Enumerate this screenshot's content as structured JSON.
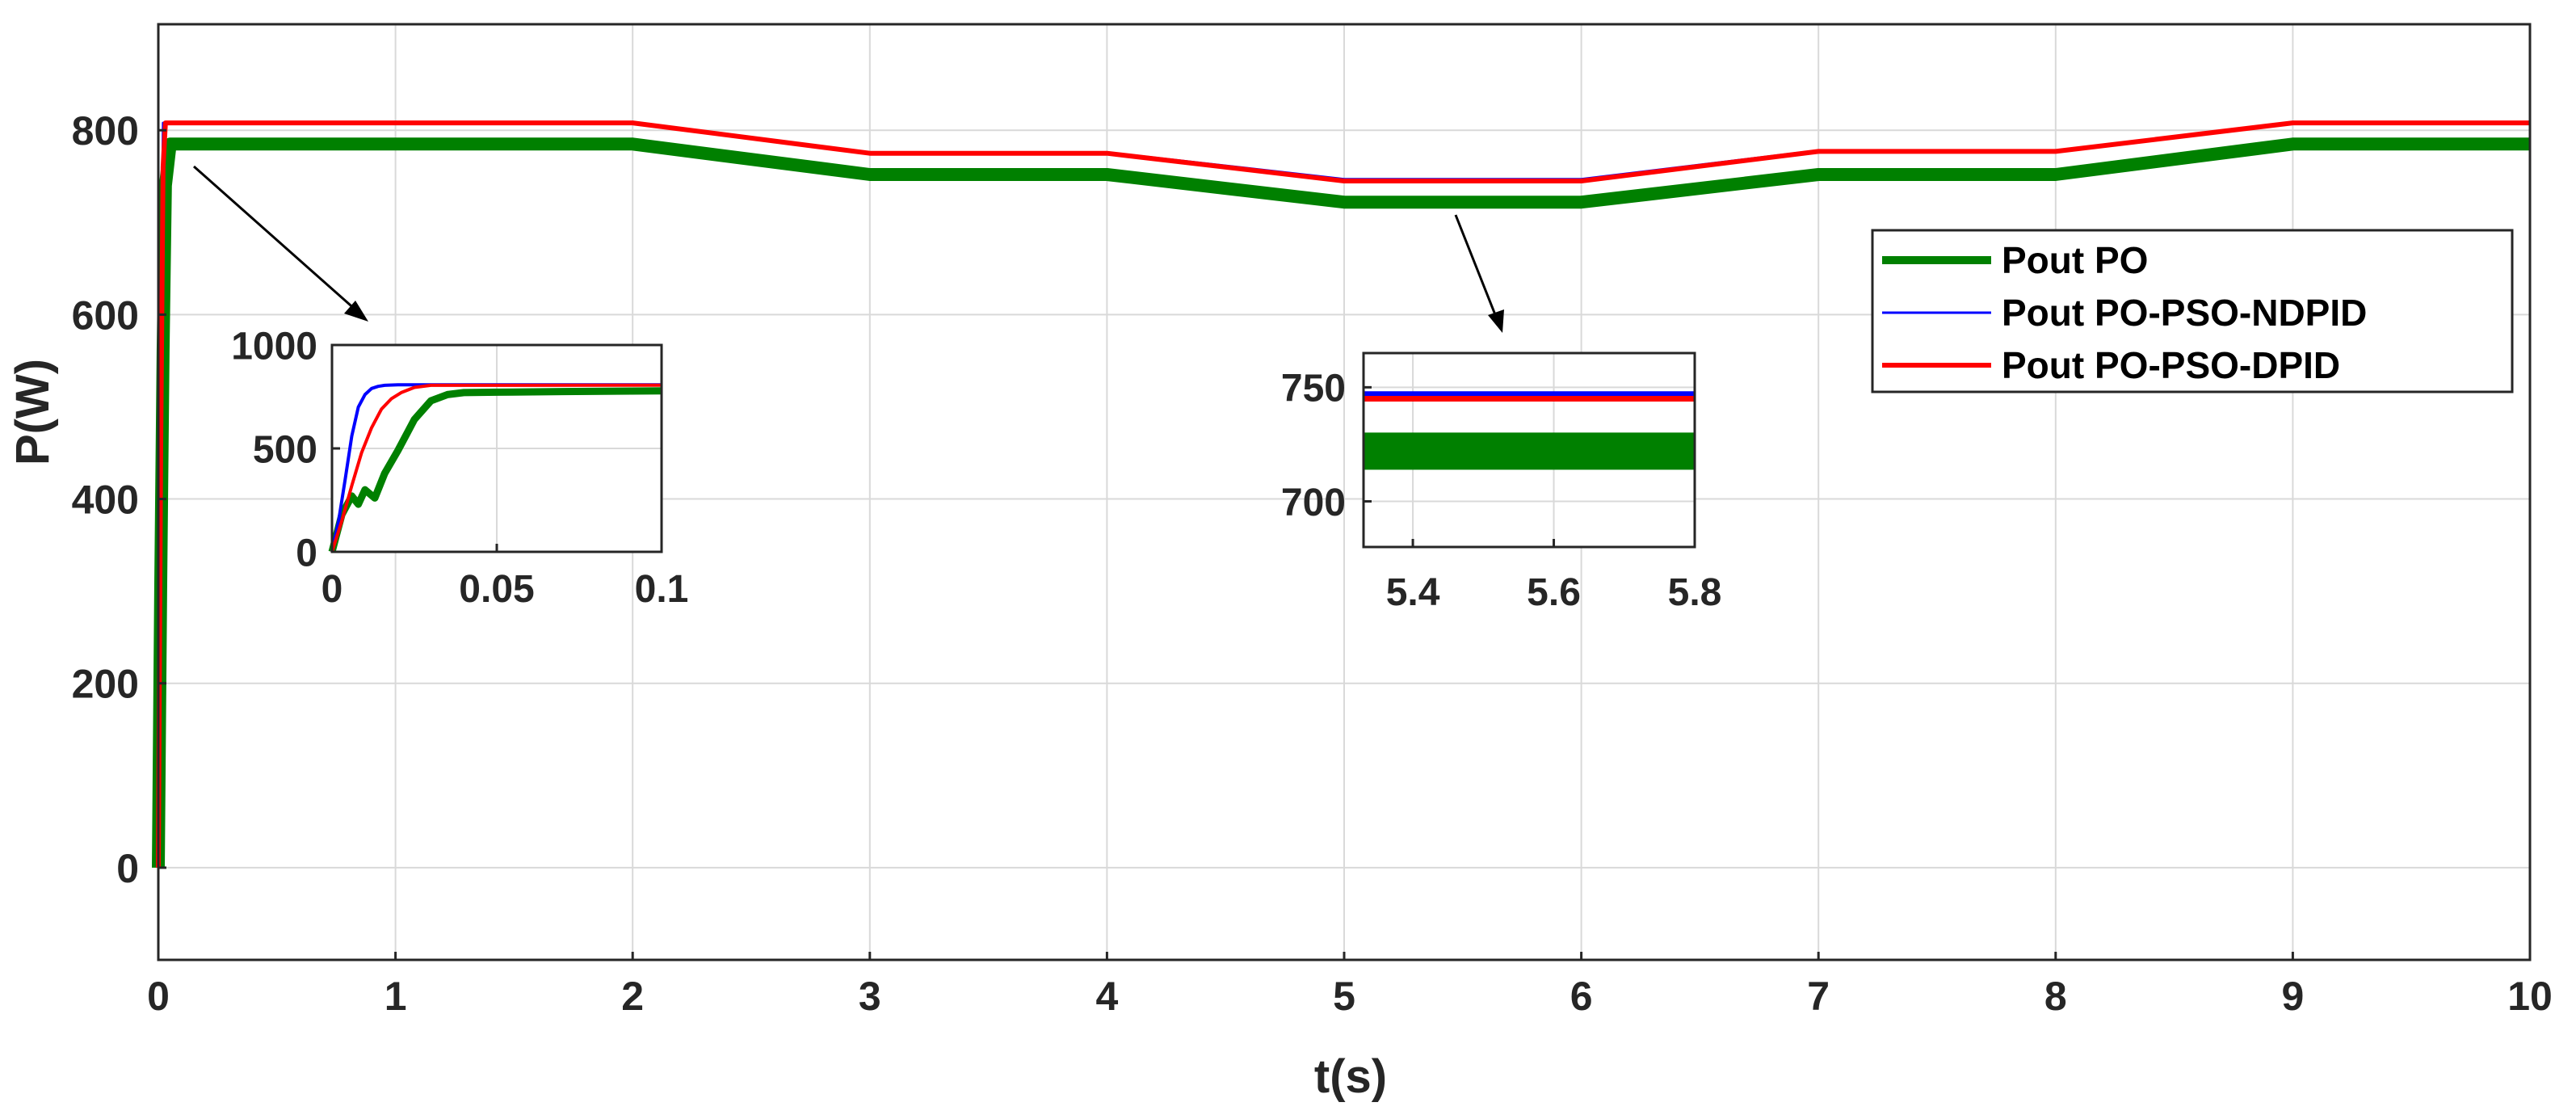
{
  "colors": {
    "po": "#008000",
    "ndpid": "#0000ff",
    "dpid": "#ff0000",
    "grid": "#d9d9d9",
    "axis": "#262626"
  },
  "chart_data": [
    {
      "type": "line",
      "xlabel": "t(s)",
      "ylabel": "P(W)",
      "xlim": [
        0,
        10
      ],
      "ylim": [
        -100,
        915
      ],
      "xticks": [
        0,
        1,
        2,
        3,
        4,
        5,
        6,
        7,
        8,
        9,
        10
      ],
      "xtick_labels": [
        "0",
        "1",
        "2",
        "3",
        "4",
        "5",
        "6",
        "7",
        "8",
        "9",
        "10"
      ],
      "yticks": [
        0,
        200,
        400,
        600,
        800
      ],
      "ytick_labels": [
        "0",
        "200",
        "400",
        "600",
        "800"
      ],
      "grid": true,
      "legend_position": "right",
      "series": [
        {
          "name": "Pout PO",
          "color": "#008000",
          "x": [
            0,
            0.01,
            0.02,
            0.03,
            0.05,
            2,
            3,
            4,
            5,
            6,
            7,
            8,
            9,
            10
          ],
          "y": [
            0,
            300,
            560,
            740,
            785,
            785,
            752,
            752,
            722,
            722,
            752,
            752,
            785,
            785
          ]
        },
        {
          "name": "Pout PO-PSO-NDPID",
          "color": "#0000ff",
          "x": [
            0,
            0.01,
            0.02,
            2,
            3,
            4,
            5,
            6,
            7,
            8,
            9,
            10
          ],
          "y": [
            0,
            600,
            808,
            808,
            776,
            776,
            747,
            747,
            778,
            778,
            808,
            808
          ]
        },
        {
          "name": "Pout PO-PSO-DPID",
          "color": "#ff0000",
          "x": [
            0,
            0.01,
            0.02,
            0.03,
            2,
            3,
            4,
            5,
            6,
            7,
            8,
            9,
            10
          ],
          "y": [
            0,
            450,
            760,
            808,
            808,
            775,
            775,
            745,
            745,
            777,
            777,
            808,
            808
          ]
        }
      ]
    },
    {
      "type": "line",
      "xlim": [
        0,
        0.1
      ],
      "ylim": [
        0,
        1000
      ],
      "xticks": [
        0,
        0.05,
        0.1
      ],
      "xtick_labels": [
        "0",
        "0.05",
        "0.1"
      ],
      "yticks": [
        0,
        500,
        1000
      ],
      "ytick_labels": [
        "0",
        "500",
        "1000"
      ],
      "grid": true,
      "series": [
        {
          "name": "Pout PO",
          "color": "#008000",
          "x": [
            0,
            0.003,
            0.006,
            0.008,
            0.01,
            0.013,
            0.016,
            0.02,
            0.025,
            0.03,
            0.035,
            0.04,
            0.05,
            0.07,
            0.1
          ],
          "y": [
            0,
            180,
            270,
            230,
            300,
            260,
            380,
            490,
            640,
            730,
            760,
            770,
            772,
            775,
            778
          ]
        },
        {
          "name": "Pout PO-PSO-NDPID",
          "color": "#0000ff",
          "x": [
            0,
            0.002,
            0.004,
            0.006,
            0.008,
            0.01,
            0.012,
            0.014,
            0.016,
            0.02,
            0.1
          ],
          "y": [
            0,
            150,
            350,
            560,
            700,
            760,
            790,
            800,
            805,
            808,
            808
          ]
        },
        {
          "name": "Pout PO-PSO-DPID",
          "color": "#ff0000",
          "x": [
            0,
            0.003,
            0.006,
            0.009,
            0.012,
            0.015,
            0.018,
            0.021,
            0.025,
            0.03,
            0.1
          ],
          "y": [
            0,
            150,
            320,
            480,
            600,
            690,
            740,
            770,
            795,
            805,
            806
          ]
        }
      ]
    },
    {
      "type": "line",
      "xlim": [
        5.33,
        5.8
      ],
      "ylim": [
        680,
        765
      ],
      "xticks": [
        5.4,
        5.6,
        5.8
      ],
      "xtick_labels": [
        "5.4",
        "5.6",
        "5.8"
      ],
      "yticks": [
        700,
        750
      ],
      "ytick_labels": [
        "700",
        "750"
      ],
      "grid": true,
      "series": [
        {
          "name": "Pout PO",
          "color": "#008000",
          "x": [
            5.33,
            5.8
          ],
          "y": [
            722,
            722
          ]
        },
        {
          "name": "Pout PO-PSO-NDPID",
          "color": "#0000ff",
          "x": [
            5.33,
            5.8
          ],
          "y": [
            747,
            747
          ]
        },
        {
          "name": "Pout PO-PSO-DPID",
          "color": "#ff0000",
          "x": [
            5.33,
            5.8
          ],
          "y": [
            745,
            745
          ]
        }
      ]
    }
  ]
}
